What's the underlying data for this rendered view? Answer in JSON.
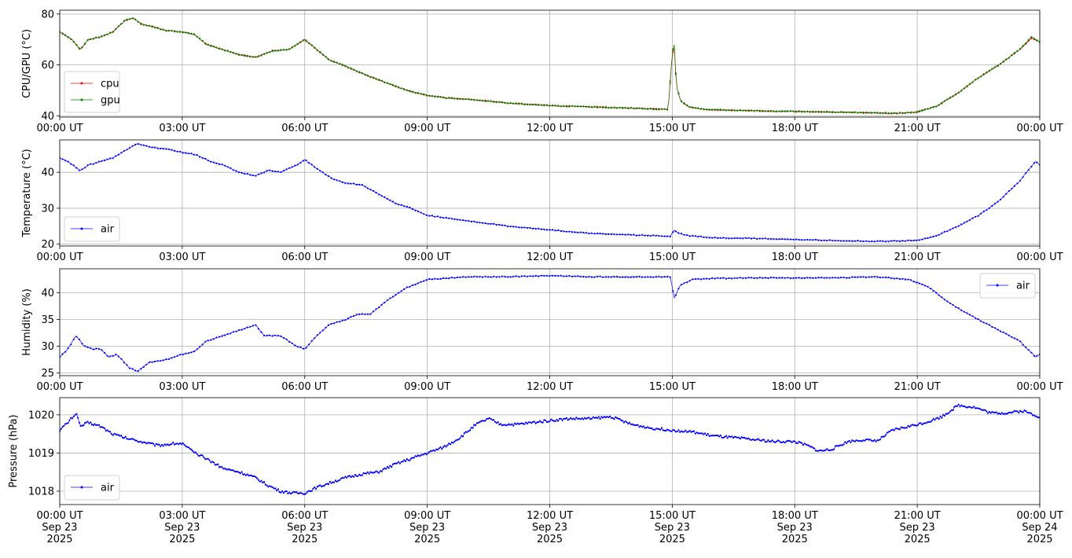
{
  "chart_data": [
    {
      "type": "line",
      "ylabel": "CPU/GPU (°C)",
      "ylim": [
        39.5,
        81.5
      ],
      "yticks": [
        40,
        60,
        80
      ],
      "grid": true,
      "legend": {
        "placement": "lower-left",
        "entries": [
          {
            "label": "cpu",
            "color": "#ff0000"
          },
          {
            "label": "gpu",
            "color": "#008000"
          }
        ]
      },
      "xticks": [
        "00:00 UT",
        "03:00 UT",
        "06:00 UT",
        "09:00 UT",
        "12:00 UT",
        "15:00 UT",
        "18:00 UT",
        "21:00 UT",
        "00:00 UT"
      ],
      "series": [
        {
          "name": "cpu",
          "color": "#ff0000",
          "x_hours": [
            0,
            0.3,
            0.5,
            0.7,
            1.0,
            1.3,
            1.6,
            1.8,
            2.0,
            2.3,
            2.6,
            3.0,
            3.3,
            3.6,
            4.0,
            4.4,
            4.8,
            5.2,
            5.6,
            5.8,
            6.0,
            6.3,
            6.6,
            7.0,
            7.5,
            8.0,
            8.5,
            9.0,
            9.5,
            10.0,
            11.0,
            12.0,
            13.0,
            14.0,
            14.9,
            15.0,
            15.05,
            15.1,
            15.2,
            15.4,
            15.8,
            16.5,
            17.5,
            18.5,
            19.5,
            20.5,
            21.0,
            21.5,
            22.0,
            22.5,
            23.0,
            23.5,
            23.8,
            24.0
          ],
          "values": [
            73,
            70,
            66,
            70,
            71,
            73,
            77.5,
            78.5,
            76,
            75,
            73.5,
            73,
            72,
            68,
            66,
            64,
            63,
            65.5,
            66,
            68,
            70,
            66,
            62,
            59.5,
            56,
            53,
            50,
            48,
            47,
            46.5,
            45,
            44,
            43.5,
            43,
            42.5,
            64,
            67,
            52,
            46,
            43.5,
            42.5,
            42.2,
            41.8,
            41.6,
            41.3,
            41,
            41.5,
            44,
            49,
            55,
            60,
            66,
            70.5,
            69
          ]
        },
        {
          "name": "gpu",
          "color": "#008000",
          "x_hours": [
            0,
            0.3,
            0.5,
            0.7,
            1.0,
            1.3,
            1.6,
            1.8,
            2.0,
            2.3,
            2.6,
            3.0,
            3.3,
            3.6,
            4.0,
            4.4,
            4.8,
            5.2,
            5.6,
            5.8,
            6.0,
            6.3,
            6.6,
            7.0,
            7.5,
            8.0,
            8.5,
            9.0,
            9.5,
            10.0,
            11.0,
            12.0,
            13.0,
            14.0,
            14.9,
            15.0,
            15.05,
            15.1,
            15.2,
            15.4,
            15.8,
            16.5,
            17.5,
            18.5,
            19.5,
            20.5,
            21.0,
            21.5,
            22.0,
            22.5,
            23.0,
            23.5,
            23.8,
            24.0
          ],
          "values": [
            73,
            70,
            66,
            70,
            71,
            73,
            77.5,
            78.5,
            76,
            75,
            73.5,
            73,
            72,
            68,
            66,
            64,
            63,
            65.5,
            66,
            68,
            70,
            66,
            62,
            59.5,
            56,
            53,
            50,
            48,
            47,
            46.5,
            45,
            44,
            43.5,
            43,
            42.5,
            65,
            68.5,
            52,
            46,
            43.5,
            42.5,
            42.2,
            41.8,
            41.6,
            41.3,
            41,
            41.5,
            44,
            49,
            55,
            60,
            66,
            71,
            69
          ]
        }
      ]
    },
    {
      "type": "line",
      "ylabel": "Temperature (°C)",
      "ylim": [
        19.5,
        49
      ],
      "yticks": [
        20,
        30,
        40
      ],
      "grid": true,
      "legend": {
        "placement": "lower-left",
        "entries": [
          {
            "label": "air",
            "color": "#0000ff"
          }
        ]
      },
      "xticks": [
        "00:00 UT",
        "03:00 UT",
        "06:00 UT",
        "09:00 UT",
        "12:00 UT",
        "15:00 UT",
        "18:00 UT",
        "21:00 UT",
        "00:00 UT"
      ],
      "series": [
        {
          "name": "air",
          "color": "#0000ff",
          "x_hours": [
            0,
            0.2,
            0.5,
            0.7,
            1.0,
            1.3,
            1.6,
            1.9,
            2.2,
            2.6,
            3.0,
            3.3,
            3.7,
            4.0,
            4.4,
            4.8,
            5.1,
            5.4,
            5.8,
            6.0,
            6.3,
            6.7,
            7.0,
            7.4,
            7.8,
            8.2,
            8.6,
            9.0,
            10.0,
            11.0,
            12.0,
            13.0,
            14.0,
            14.95,
            15.05,
            15.15,
            15.3,
            15.6,
            16.0,
            17.0,
            18.0,
            19.0,
            20.0,
            21.0,
            21.5,
            22.0,
            22.5,
            23.0,
            23.5,
            23.9,
            24.0
          ],
          "values": [
            44,
            43,
            40.5,
            42,
            43,
            44,
            46,
            48,
            47,
            46.5,
            45.5,
            45,
            43,
            42,
            40,
            39,
            40.5,
            40,
            42,
            43.5,
            41,
            38,
            37,
            36.5,
            34,
            31.5,
            30,
            28,
            26.5,
            25,
            24,
            23,
            22.6,
            22.2,
            23.8,
            23.2,
            22.5,
            22.2,
            21.8,
            21.6,
            21.3,
            21,
            20.8,
            21,
            22.5,
            25,
            28,
            32,
            37.5,
            43,
            42
          ]
        }
      ]
    },
    {
      "type": "line",
      "ylabel": "Humidity (%)",
      "ylim": [
        24.5,
        44.5
      ],
      "yticks": [
        25,
        30,
        35,
        40
      ],
      "grid": true,
      "legend": {
        "placement": "upper-right",
        "entries": [
          {
            "label": "air",
            "color": "#0000ff"
          }
        ]
      },
      "xticks": [
        "00:00 UT",
        "03:00 UT",
        "06:00 UT",
        "09:00 UT",
        "12:00 UT",
        "15:00 UT",
        "18:00 UT",
        "21:00 UT",
        "00:00 UT"
      ],
      "series": [
        {
          "name": "air",
          "color": "#0000ff",
          "x_hours": [
            0,
            0.2,
            0.4,
            0.6,
            0.8,
            1.0,
            1.2,
            1.4,
            1.7,
            1.9,
            2.2,
            2.6,
            3.0,
            3.3,
            3.6,
            4.0,
            4.4,
            4.8,
            5.0,
            5.4,
            5.8,
            6.0,
            6.3,
            6.6,
            7.0,
            7.3,
            7.6,
            8.0,
            8.5,
            9.0,
            10.0,
            11.0,
            12.0,
            13.0,
            14.0,
            14.95,
            15.05,
            15.2,
            15.5,
            16.0,
            17.0,
            18.0,
            19.0,
            20.0,
            20.8,
            21.3,
            21.8,
            22.5,
            23.0,
            23.5,
            23.9,
            24.0
          ],
          "values": [
            28,
            29.5,
            32,
            30,
            29.5,
            29.5,
            28,
            28.5,
            26,
            25.3,
            27,
            27.5,
            28.5,
            29,
            31,
            32,
            33,
            34,
            32,
            32,
            30,
            29.5,
            32,
            34,
            35,
            36,
            36,
            38.5,
            41,
            42.5,
            43,
            43,
            43.2,
            43,
            43,
            43,
            39,
            41.5,
            42.5,
            42.7,
            42.8,
            42.8,
            42.8,
            43,
            42.5,
            41,
            38,
            35,
            33,
            31,
            28,
            28.5
          ]
        }
      ]
    },
    {
      "type": "line",
      "ylabel": "Pressure (hPa)",
      "ylim": [
        1017.65,
        1020.45
      ],
      "yticks": [
        1018,
        1019,
        1020
      ],
      "grid": true,
      "legend": {
        "placement": "lower-left",
        "entries": [
          {
            "label": "air",
            "color": "#0000ff"
          }
        ]
      },
      "xticks": [
        [
          "00:00 UT",
          "Sep 23",
          "2025"
        ],
        [
          "03:00 UT",
          "Sep 23",
          "2025"
        ],
        [
          "06:00 UT",
          "Sep 23",
          "2025"
        ],
        [
          "09:00 UT",
          "Sep 23",
          "2025"
        ],
        [
          "12:00 UT",
          "Sep 23",
          "2025"
        ],
        [
          "15:00 UT",
          "Sep 23",
          "2025"
        ],
        [
          "18:00 UT",
          "Sep 23",
          "2025"
        ],
        [
          "21:00 UT",
          "Sep 23",
          "2025"
        ],
        [
          "00:00 UT",
          "Sep 24",
          "2025"
        ]
      ],
      "series": [
        {
          "name": "air",
          "color": "#0000ff",
          "x_hours": [
            0,
            0.2,
            0.4,
            0.5,
            0.7,
            1.0,
            1.3,
            1.6,
            2.0,
            2.4,
            2.8,
            3.0,
            3.3,
            3.6,
            4.0,
            4.4,
            4.8,
            5.1,
            5.4,
            5.7,
            6.0,
            6.3,
            6.7,
            7.0,
            7.4,
            7.8,
            8.2,
            8.6,
            9.0,
            9.4,
            9.8,
            10.2,
            10.5,
            10.8,
            11.2,
            11.6,
            12.0,
            12.5,
            13.0,
            13.5,
            14.0,
            14.5,
            15.0,
            15.5,
            16.0,
            16.5,
            17.0,
            17.5,
            18.0,
            18.3,
            18.6,
            18.9,
            19.3,
            19.7,
            20.0,
            20.4,
            20.8,
            21.2,
            21.6,
            22.0,
            22.4,
            22.8,
            23.2,
            23.6,
            24.0
          ],
          "values": [
            1019.6,
            1019.8,
            1020.05,
            1019.7,
            1019.8,
            1019.7,
            1019.5,
            1019.4,
            1019.3,
            1019.2,
            1019.25,
            1019.25,
            1019.0,
            1018.85,
            1018.6,
            1018.5,
            1018.35,
            1018.15,
            1018.0,
            1017.95,
            1017.95,
            1018.1,
            1018.25,
            1018.35,
            1018.45,
            1018.5,
            1018.7,
            1018.85,
            1019.0,
            1019.15,
            1019.4,
            1019.75,
            1019.9,
            1019.75,
            1019.75,
            1019.8,
            1019.85,
            1019.9,
            1019.9,
            1019.95,
            1019.75,
            1019.65,
            1019.6,
            1019.55,
            1019.45,
            1019.4,
            1019.35,
            1019.3,
            1019.3,
            1019.2,
            1019.05,
            1019.1,
            1019.3,
            1019.35,
            1019.3,
            1019.6,
            1019.7,
            1019.8,
            1019.95,
            1020.25,
            1020.2,
            1020.05,
            1020.05,
            1020.1,
            1019.95
          ]
        }
      ]
    }
  ]
}
